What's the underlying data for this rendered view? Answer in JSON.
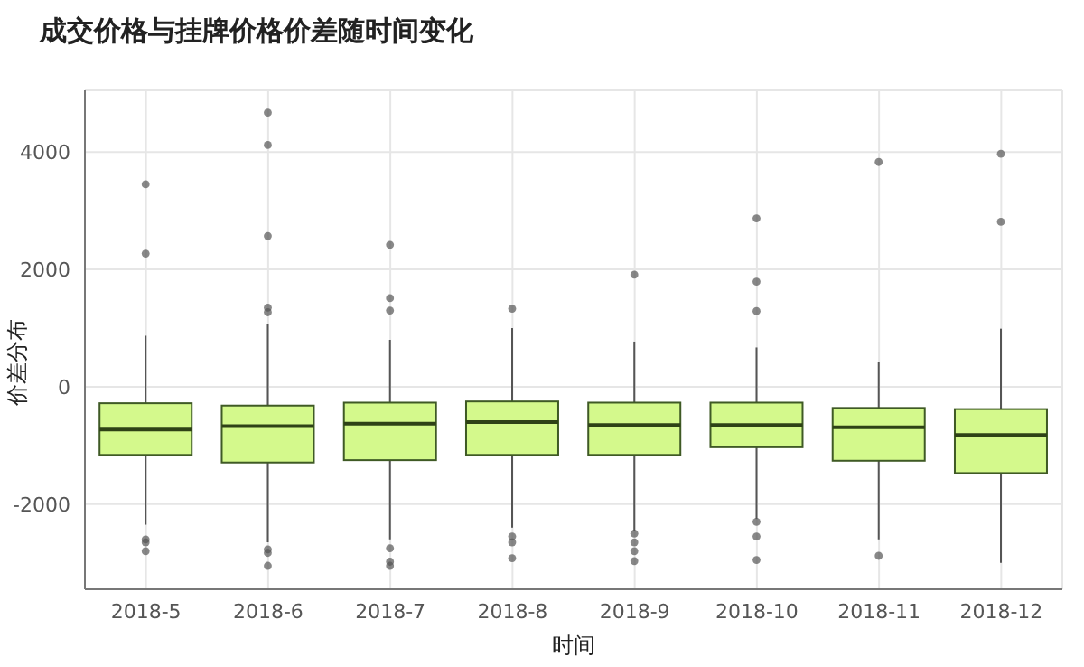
{
  "chart_data": {
    "type": "box",
    "title": "成交价格与挂牌价格价差随时间变化",
    "xlabel": "时间",
    "ylabel": "价差分布",
    "categories": [
      "2018-5",
      "2018-6",
      "2018-7",
      "2018-8",
      "2018-9",
      "2018-10",
      "2018-11",
      "2018-12"
    ],
    "color": "#d4f98c",
    "boxes": [
      {
        "low": -2350,
        "q1": -1160,
        "median": -730,
        "q3": -280,
        "high": 870,
        "outliers": [
          3450,
          2270,
          -2600,
          -2650,
          -2800
        ]
      },
      {
        "low": -2650,
        "q1": -1290,
        "median": -670,
        "q3": -320,
        "high": 1070,
        "outliers": [
          4670,
          4120,
          2570,
          1350,
          1270,
          -2770,
          -2830,
          -3050
        ]
      },
      {
        "low": -2600,
        "q1": -1250,
        "median": -630,
        "q3": -270,
        "high": 800,
        "outliers": [
          2420,
          1510,
          1300,
          -2750,
          -2980,
          -3050
        ]
      },
      {
        "low": -2400,
        "q1": -1160,
        "median": -600,
        "q3": -250,
        "high": 1000,
        "outliers": [
          1330,
          -2550,
          -2650,
          -2920
        ]
      },
      {
        "low": -2450,
        "q1": -1160,
        "median": -650,
        "q3": -270,
        "high": 770,
        "outliers": [
          1910,
          -2500,
          -2650,
          -2800,
          -2970
        ]
      },
      {
        "low": -2250,
        "q1": -1030,
        "median": -650,
        "q3": -270,
        "high": 670,
        "outliers": [
          2870,
          1790,
          1290,
          -2300,
          -2550,
          -2950
        ]
      },
      {
        "low": -2600,
        "q1": -1260,
        "median": -690,
        "q3": -360,
        "high": 430,
        "outliers": [
          3830,
          -2880
        ]
      },
      {
        "low": -3000,
        "q1": -1470,
        "median": -820,
        "q3": -380,
        "high": 990,
        "outliers": [
          3970,
          2810
        ]
      }
    ],
    "ylim": [
      -3450,
      5050
    ],
    "yticks": [
      -2000,
      0,
      2000,
      4000
    ],
    "grid": true,
    "legend": false
  }
}
